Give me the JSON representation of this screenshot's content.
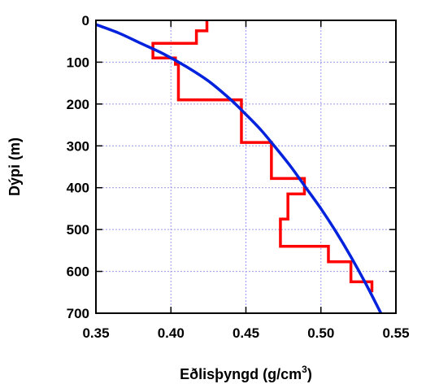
{
  "chart_data": {
    "type": "line",
    "title": "",
    "xlabel": "Eðlisþyngd (g/cm",
    "xlabel_sup": "3",
    "xlabel_end": ")",
    "ylabel": "Dýpi (m)",
    "xlim": [
      0.35,
      0.55
    ],
    "ylim": [
      0,
      700
    ],
    "y_inverted": true,
    "x_ticks": [
      "0.35",
      "0.40",
      "0.45",
      "0.50",
      "0.55"
    ],
    "y_ticks": [
      "0",
      "100",
      "200",
      "300",
      "400",
      "500",
      "600",
      "700"
    ],
    "x_tick_values": [
      0.35,
      0.4,
      0.45,
      0.5,
      0.55
    ],
    "y_tick_values": [
      0,
      100,
      200,
      300,
      400,
      500,
      600,
      700
    ],
    "grid": true,
    "colors": {
      "measured": "#ff0000",
      "model": "#0022dd",
      "grid": "#9999ee"
    },
    "series": [
      {
        "style": "step",
        "color": "#ff0000",
        "points": [
          [
            0.424,
            0
          ],
          [
            0.424,
            25
          ],
          [
            0.417,
            25
          ],
          [
            0.417,
            55
          ],
          [
            0.388,
            55
          ],
          [
            0.388,
            90
          ],
          [
            0.403,
            90
          ],
          [
            0.403,
            105
          ],
          [
            0.405,
            105
          ],
          [
            0.405,
            190
          ],
          [
            0.447,
            190
          ],
          [
            0.447,
            292
          ],
          [
            0.467,
            292
          ],
          [
            0.467,
            378
          ],
          [
            0.489,
            378
          ],
          [
            0.489,
            415
          ],
          [
            0.478,
            415
          ],
          [
            0.478,
            475
          ],
          [
            0.473,
            475
          ],
          [
            0.473,
            540
          ],
          [
            0.505,
            540
          ],
          [
            0.505,
            577
          ],
          [
            0.52,
            577
          ],
          [
            0.52,
            625
          ],
          [
            0.534,
            625
          ],
          [
            0.534,
            650
          ]
        ]
      },
      {
        "style": "curve",
        "color": "#0022dd",
        "points": [
          [
            0.35,
            10
          ],
          [
            0.365,
            30
          ],
          [
            0.38,
            55
          ],
          [
            0.395,
            80
          ],
          [
            0.41,
            110
          ],
          [
            0.425,
            145
          ],
          [
            0.44,
            190
          ],
          [
            0.45,
            225
          ],
          [
            0.46,
            262
          ],
          [
            0.47,
            305
          ],
          [
            0.48,
            350
          ],
          [
            0.49,
            400
          ],
          [
            0.5,
            450
          ],
          [
            0.51,
            505
          ],
          [
            0.52,
            565
          ],
          [
            0.53,
            630
          ],
          [
            0.54,
            700
          ]
        ]
      }
    ]
  }
}
